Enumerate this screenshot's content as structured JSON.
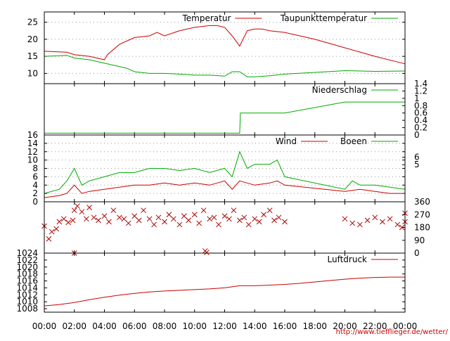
{
  "chart_data": [
    {
      "type": "line",
      "legend_position": "top-right",
      "grid": true,
      "ylim": [
        7,
        28
      ],
      "yticks": [
        10,
        15,
        20,
        25
      ],
      "x_unit": "hours",
      "series": [
        {
          "name": "Temperatur",
          "color": "#cc0000",
          "points": [
            [
              0,
              16.5
            ],
            [
              1.5,
              16.2
            ],
            [
              2,
              15.5
            ],
            [
              3,
              15
            ],
            [
              4,
              14
            ],
            [
              4.2,
              15.5
            ],
            [
              5,
              18.5
            ],
            [
              6,
              20.5
            ],
            [
              7,
              21
            ],
            [
              7.5,
              22
            ],
            [
              8,
              21
            ],
            [
              9,
              22.5
            ],
            [
              10,
              23.5
            ],
            [
              11,
              24
            ],
            [
              11.5,
              24
            ],
            [
              12,
              23.5
            ],
            [
              12.5,
              21
            ],
            [
              13,
              18
            ],
            [
              13.5,
              22.5
            ],
            [
              14,
              23
            ],
            [
              14.5,
              23
            ],
            [
              15,
              22.5
            ],
            [
              16,
              22
            ],
            [
              17,
              21
            ],
            [
              18,
              20
            ],
            [
              20,
              17.5
            ],
            [
              22,
              15
            ],
            [
              24,
              12.8
            ]
          ]
        },
        {
          "name": "Taupunkttemperatur",
          "color": "#00aa00",
          "points": [
            [
              0,
              15
            ],
            [
              1.5,
              15.3
            ],
            [
              2,
              14.5
            ],
            [
              3,
              14
            ],
            [
              4,
              13
            ],
            [
              4.5,
              12.5
            ],
            [
              5,
              12
            ],
            [
              5.5,
              11.5
            ],
            [
              6,
              10.5
            ],
            [
              7,
              10
            ],
            [
              8,
              10
            ],
            [
              9,
              9.8
            ],
            [
              10,
              9.5
            ],
            [
              11,
              9.5
            ],
            [
              12,
              9.2
            ],
            [
              12.5,
              10.5
            ],
            [
              13,
              10.5
            ],
            [
              13.5,
              9
            ],
            [
              14,
              9
            ],
            [
              15,
              9.3
            ],
            [
              16,
              9.8
            ],
            [
              18,
              10.3
            ],
            [
              20,
              10.8
            ],
            [
              22,
              10.6
            ],
            [
              24,
              10.7
            ]
          ]
        }
      ]
    },
    {
      "type": "line",
      "legend_position": "top-right",
      "ylim": [
        0,
        1.4
      ],
      "yticks": [
        0,
        0.2,
        0.4,
        0.6,
        0.8,
        1,
        1.2,
        1.4
      ],
      "x_unit": "hours",
      "series": [
        {
          "name": "Niederschlag",
          "color": "#00aa00",
          "points": [
            [
              0,
              0.05
            ],
            [
              13,
              0.05
            ],
            [
              13.05,
              0.6
            ],
            [
              16,
              0.6
            ],
            [
              20,
              0.9
            ],
            [
              24,
              0.9
            ]
          ]
        }
      ]
    },
    {
      "type": "line",
      "legend_position": "top-right",
      "grid": true,
      "ylim": [
        0,
        16
      ],
      "yticks": [
        0,
        2,
        4,
        6,
        8,
        10,
        12,
        14,
        16
      ],
      "y2ticks": [
        5,
        6
      ],
      "x_unit": "hours",
      "series": [
        {
          "name": "Wind",
          "color": "#cc0000",
          "points": [
            [
              0,
              1
            ],
            [
              1,
              1.5
            ],
            [
              1.5,
              2
            ],
            [
              2,
              4
            ],
            [
              2.5,
              2
            ],
            [
              3,
              2.5
            ],
            [
              4,
              3
            ],
            [
              5,
              3.5
            ],
            [
              6,
              4
            ],
            [
              7,
              4
            ],
            [
              8,
              4.5
            ],
            [
              9,
              4
            ],
            [
              10,
              4.5
            ],
            [
              11,
              4
            ],
            [
              12,
              5
            ],
            [
              12.5,
              3
            ],
            [
              13,
              5
            ],
            [
              14,
              4
            ],
            [
              15,
              4.5
            ],
            [
              15.5,
              5
            ],
            [
              16,
              4
            ],
            [
              20,
              2.5
            ],
            [
              21,
              3
            ],
            [
              22,
              2.5
            ],
            [
              23,
              2
            ],
            [
              24,
              2
            ]
          ]
        },
        {
          "name": "Boeen",
          "color": "#00aa00",
          "points": [
            [
              0,
              2
            ],
            [
              1,
              3
            ],
            [
              1.5,
              5
            ],
            [
              2,
              8
            ],
            [
              2.5,
              4
            ],
            [
              3,
              5
            ],
            [
              4,
              6
            ],
            [
              5,
              7
            ],
            [
              6,
              7
            ],
            [
              7,
              8
            ],
            [
              8,
              8
            ],
            [
              9,
              7.5
            ],
            [
              10,
              8
            ],
            [
              11,
              7
            ],
            [
              12,
              8
            ],
            [
              12.5,
              6
            ],
            [
              13,
              12
            ],
            [
              13.5,
              8
            ],
            [
              14,
              9
            ],
            [
              15,
              9
            ],
            [
              15.5,
              10
            ],
            [
              16,
              6
            ],
            [
              20,
              3
            ],
            [
              20.5,
              5
            ],
            [
              21,
              4
            ],
            [
              22,
              4
            ],
            [
              23,
              3.5
            ],
            [
              24,
              3
            ]
          ]
        }
      ]
    },
    {
      "type": "scatter",
      "ylim": [
        0,
        360
      ],
      "yticks": [
        0,
        90,
        180,
        270,
        360
      ],
      "x_unit": "hours",
      "series": [
        {
          "name": "",
          "color": "#aa0000",
          "points": [
            [
              0,
              190
            ],
            [
              0.3,
              100
            ],
            [
              0.5,
              150
            ],
            [
              0.8,
              170
            ],
            [
              1,
              220
            ],
            [
              1.3,
              240
            ],
            [
              1.6,
              215
            ],
            [
              1.9,
              230
            ],
            [
              2,
              300
            ],
            [
              2.2,
              330
            ],
            [
              2.5,
              290
            ],
            [
              2.8,
              240
            ],
            [
              3,
              320
            ],
            [
              3.3,
              250
            ],
            [
              3.6,
              230
            ],
            [
              4,
              260
            ],
            [
              4.3,
              220
            ],
            [
              4.6,
              300
            ],
            [
              5,
              250
            ],
            [
              5.3,
              240
            ],
            [
              5.6,
              210
            ],
            [
              6,
              260
            ],
            [
              6.3,
              230
            ],
            [
              6.6,
              300
            ],
            [
              7,
              240
            ],
            [
              7.3,
              200
            ],
            [
              7.6,
              250
            ],
            [
              8,
              220
            ],
            [
              8.3,
              270
            ],
            [
              8.6,
              240
            ],
            [
              9,
              200
            ],
            [
              9.3,
              260
            ],
            [
              9.6,
              230
            ],
            [
              10,
              270
            ],
            [
              10.3,
              210
            ],
            [
              10.6,
              300
            ],
            [
              11,
              240
            ],
            [
              11.3,
              250
            ],
            [
              11.6,
              200
            ],
            [
              12,
              260
            ],
            [
              12.3,
              240
            ],
            [
              12.6,
              300
            ],
            [
              13,
              230
            ],
            [
              13.3,
              250
            ],
            [
              13.6,
              200
            ],
            [
              14,
              240
            ],
            [
              14.3,
              220
            ],
            [
              14.6,
              270
            ],
            [
              15,
              300
            ],
            [
              15.3,
              230
            ],
            [
              15.6,
              250
            ],
            [
              16,
              220
            ],
            [
              2,
              0
            ],
            [
              10.7,
              15
            ],
            [
              10.8,
              5
            ],
            [
              20,
              240
            ],
            [
              20.5,
              210
            ],
            [
              21,
              200
            ],
            [
              21.5,
              230
            ],
            [
              22,
              250
            ],
            [
              22.5,
              220
            ],
            [
              23,
              240
            ],
            [
              23.5,
              200
            ],
            [
              24,
              220
            ],
            [
              24,
              280
            ],
            [
              23.8,
              180
            ]
          ]
        }
      ]
    },
    {
      "type": "line",
      "legend_position": "top-right",
      "ylim": [
        1007,
        1024
      ],
      "yticks": [
        1008,
        1010,
        1012,
        1014,
        1016,
        1018,
        1020,
        1022,
        1024
      ],
      "x_unit": "hours",
      "series": [
        {
          "name": "Luftdruck",
          "color": "#cc0000",
          "points": [
            [
              0,
              1008.8
            ],
            [
              1,
              1009.2
            ],
            [
              2,
              1009.8
            ],
            [
              3,
              1010.6
            ],
            [
              4,
              1011.3
            ],
            [
              5,
              1011.9
            ],
            [
              6,
              1012.4
            ],
            [
              7,
              1012.8
            ],
            [
              8,
              1013.1
            ],
            [
              9,
              1013.3
            ],
            [
              10,
              1013.5
            ],
            [
              11,
              1013.7
            ],
            [
              12,
              1014
            ],
            [
              13,
              1014.6
            ],
            [
              14,
              1014.6
            ],
            [
              15,
              1014.8
            ],
            [
              16,
              1015
            ],
            [
              17,
              1015.3
            ],
            [
              18,
              1015.7
            ],
            [
              19,
              1016.1
            ],
            [
              20,
              1016.5
            ],
            [
              21,
              1016.8
            ],
            [
              22,
              1017
            ],
            [
              23,
              1017.1
            ],
            [
              24,
              1017.1
            ]
          ]
        }
      ]
    }
  ],
  "x_axis": {
    "range": [
      0,
      24
    ],
    "tick_values": [
      0,
      2,
      4,
      6,
      8,
      10,
      12,
      14,
      16,
      18,
      20,
      22,
      24
    ],
    "tick_labels": [
      "00:00",
      "02:00",
      "04:00",
      "06:00",
      "08:00",
      "10:00",
      "12:00",
      "14:00",
      "16:00",
      "18:00",
      "20:00",
      "22:00",
      "00:00"
    ]
  },
  "footer_url": "http://www.tiefflieger.de/wetter/"
}
